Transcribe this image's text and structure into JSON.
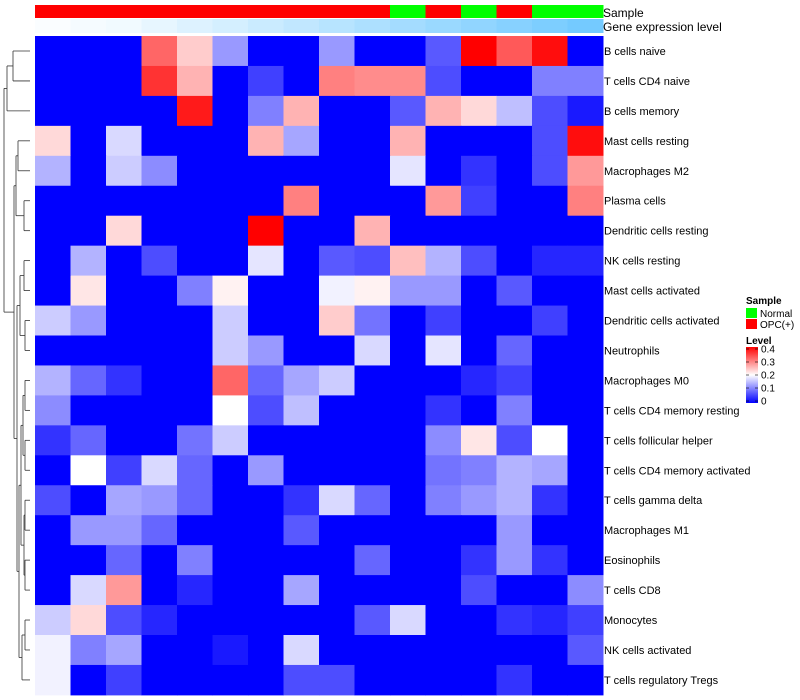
{
  "chart_data": {
    "type": "heatmap",
    "annotation_labels": {
      "sample": "Sample",
      "gene_expression": "Gene expression level"
    },
    "rows": [
      "B cells naive",
      "T cells CD4 naive",
      "B cells memory",
      "Mast cells resting",
      "Macrophages M2",
      "Plasma cells",
      "Dendritic cells resting",
      "NK cells resting",
      "Mast cells activated",
      "Dendritic cells activated",
      "Neutrophils",
      "Macrophages M0",
      "T cells CD4 memory resting",
      "T cells follicular helper",
      "T cells CD4 memory activated",
      "T cells gamma delta",
      "Macrophages M1",
      "Eosinophils",
      "T cells CD8",
      "Monocytes",
      "NK cells activated",
      "T cells regulatory  Tregs"
    ],
    "columns": 16,
    "sample_annotation": [
      "OPC(+)",
      "OPC(+)",
      "OPC(+)",
      "OPC(+)",
      "OPC(+)",
      "OPC(+)",
      "OPC(+)",
      "OPC(+)",
      "OPC(+)",
      "OPC(+)",
      "Normal",
      "OPC(+)",
      "Normal",
      "OPC(+)",
      "Normal",
      "Normal"
    ],
    "gene_expression_annotation": [
      0.02,
      0.04,
      0.06,
      0.1,
      0.14,
      0.18,
      0.22,
      0.26,
      0.3,
      0.34,
      0.38,
      0.42,
      0.46,
      0.5,
      0.54,
      0.58
    ],
    "values": [
      [
        0,
        0,
        0,
        0.32,
        0.24,
        0.12,
        0,
        0,
        0.12,
        0,
        0,
        0.07,
        0.4,
        0.33,
        0.39,
        0
      ],
      [
        0,
        0,
        0,
        0.36,
        0.26,
        0,
        0.05,
        0,
        0.3,
        0.29,
        0.29,
        0.06,
        0,
        0,
        0.1,
        0.1
      ],
      [
        0,
        0,
        0,
        0,
        0.38,
        0,
        0.1,
        0.26,
        0,
        0,
        0.07,
        0.26,
        0.23,
        0.15,
        0.06,
        0.02
      ],
      [
        0.23,
        0,
        0.17,
        0,
        0,
        0,
        0.26,
        0.13,
        0,
        0,
        0.26,
        0,
        0,
        0,
        0.06,
        0.39
      ],
      [
        0.14,
        0,
        0.16,
        0.11,
        0,
        0,
        0,
        0,
        0,
        0,
        0.18,
        0,
        0.04,
        0,
        0.06,
        0.28
      ],
      [
        0,
        0,
        0,
        0,
        0,
        0,
        0,
        0.3,
        0,
        0,
        0,
        0.28,
        0.05,
        0,
        0,
        0.3
      ],
      [
        0,
        0,
        0.23,
        0,
        0,
        0,
        0.4,
        0,
        0,
        0.26,
        0,
        0,
        0,
        0,
        0,
        0
      ],
      [
        0,
        0.14,
        0,
        0.06,
        0,
        0,
        0.18,
        0,
        0.07,
        0.06,
        0.25,
        0.14,
        0.06,
        0,
        0.03,
        0.03
      ],
      [
        0,
        0.22,
        0,
        0,
        0.1,
        0.21,
        0,
        0,
        0.19,
        0.21,
        0.12,
        0.12,
        0,
        0.07,
        0,
        0
      ],
      [
        0.16,
        0.12,
        0,
        0,
        0,
        0.16,
        0,
        0,
        0.24,
        0.09,
        0,
        0.05,
        0,
        0,
        0.05,
        0
      ],
      [
        0,
        0,
        0,
        0,
        0,
        0.16,
        0.12,
        0,
        0,
        0.17,
        0,
        0.18,
        0,
        0.08,
        0,
        0
      ],
      [
        0.14,
        0.08,
        0.04,
        0,
        0,
        0.32,
        0.08,
        0.13,
        0.16,
        0,
        0,
        0,
        0.03,
        0.05,
        0,
        0
      ],
      [
        0.11,
        0,
        0,
        0,
        0,
        0.2,
        0.06,
        0.15,
        0,
        0,
        0,
        0.04,
        0,
        0.1,
        0,
        0
      ],
      [
        0.04,
        0.08,
        0,
        0,
        0.09,
        0.16,
        0,
        0,
        0,
        0,
        0,
        0.11,
        0.22,
        0.06,
        0.2,
        0
      ],
      [
        0,
        0.2,
        0.05,
        0.17,
        0.08,
        0,
        0.12,
        0,
        0,
        0,
        0,
        0.09,
        0.1,
        0.14,
        0.13,
        0
      ],
      [
        0.06,
        0,
        0.13,
        0.12,
        0.08,
        0,
        0,
        0.04,
        0.17,
        0.08,
        0,
        0.1,
        0.12,
        0.14,
        0.04,
        0
      ],
      [
        0,
        0.12,
        0.12,
        0.08,
        0,
        0,
        0,
        0.07,
        0,
        0,
        0,
        0,
        0,
        0.12,
        0,
        0
      ],
      [
        0,
        0,
        0.08,
        0,
        0.1,
        0,
        0,
        0,
        0,
        0.08,
        0,
        0,
        0.04,
        0.12,
        0.04,
        0
      ],
      [
        0,
        0.17,
        0.28,
        0,
        0.03,
        0,
        0,
        0.13,
        0,
        0,
        0,
        0,
        0.06,
        0,
        0,
        0.11
      ],
      [
        0.16,
        0.23,
        0.06,
        0.03,
        0,
        0,
        0,
        0,
        0,
        0.07,
        0.17,
        0,
        0,
        0.04,
        0.03,
        0.05
      ],
      [
        0.19,
        0.1,
        0.13,
        0,
        0,
        0.02,
        0,
        0.17,
        0,
        0,
        0,
        0,
        0,
        0,
        0,
        0.07
      ],
      [
        0.19,
        0,
        0.05,
        0,
        0,
        0,
        0,
        0.06,
        0.06,
        0,
        0,
        0,
        0,
        0.04,
        0,
        0
      ]
    ],
    "legends": {
      "sample_title": "Sample",
      "sample_entries": [
        {
          "label": "Normal",
          "color": "#00ff00"
        },
        {
          "label": "OPC(+)",
          "color": "#ff0000"
        }
      ],
      "level_title": "Level",
      "level_ticks": [
        "0.4",
        "0.3",
        "0.2",
        "0.1",
        "0"
      ]
    },
    "colors": {
      "low": "#0000ff",
      "mid": "#ffffff",
      "high": "#ff0000",
      "annotation_low": "#ffffff",
      "annotation_high": "#6fc8ff",
      "normal": "#00ff00",
      "opc": "#ff0000"
    },
    "value_range": [
      0,
      0.4
    ]
  }
}
